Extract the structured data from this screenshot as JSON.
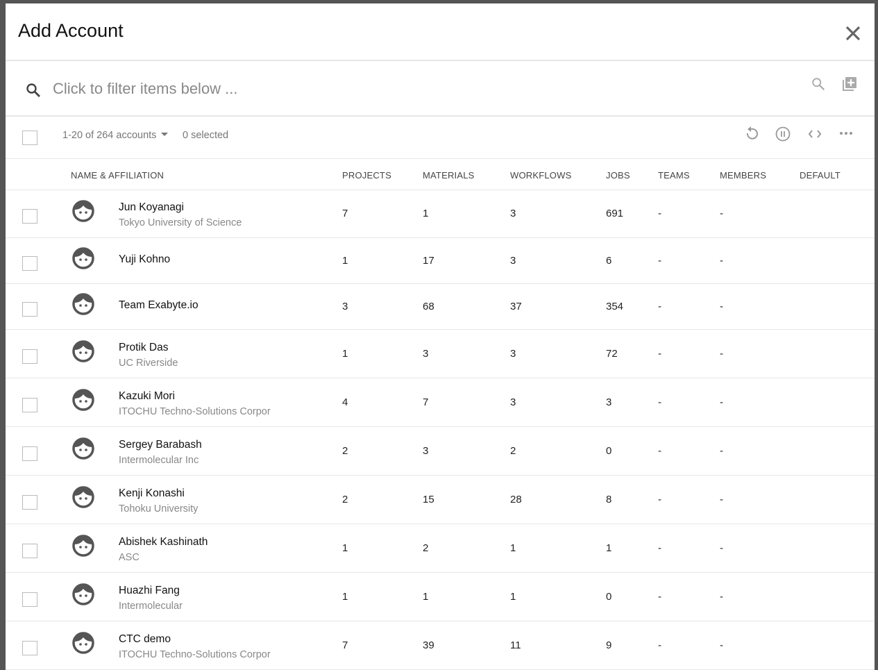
{
  "dialog": {
    "title": "Add Account"
  },
  "filter": {
    "placeholder": "Click to filter items below ..."
  },
  "toolbar": {
    "range": "1-20 of 264 accounts",
    "selected": "0 selected"
  },
  "columns": [
    "NAME & AFFILIATION",
    "PROJECTS",
    "MATERIALS",
    "WORKFLOWS",
    "JOBS",
    "TEAMS",
    "MEMBERS",
    "DEFAULT"
  ],
  "rows": [
    {
      "name": "Jun Koyanagi",
      "affiliation": "Tokyo University of Science",
      "projects": "7",
      "materials": "1",
      "workflows": "3",
      "jobs": "691",
      "teams": "-",
      "members": "-",
      "default": ""
    },
    {
      "name": "Yuji Kohno",
      "affiliation": "",
      "projects": "1",
      "materials": "17",
      "workflows": "3",
      "jobs": "6",
      "teams": "-",
      "members": "-",
      "default": ""
    },
    {
      "name": "Team Exabyte.io",
      "affiliation": "",
      "projects": "3",
      "materials": "68",
      "workflows": "37",
      "jobs": "354",
      "teams": "-",
      "members": "-",
      "default": ""
    },
    {
      "name": "Protik Das",
      "affiliation": "UC Riverside",
      "projects": "1",
      "materials": "3",
      "workflows": "3",
      "jobs": "72",
      "teams": "-",
      "members": "-",
      "default": ""
    },
    {
      "name": "Kazuki Mori",
      "affiliation": "ITOCHU Techno-Solutions Corpor",
      "projects": "4",
      "materials": "7",
      "workflows": "3",
      "jobs": "3",
      "teams": "-",
      "members": "-",
      "default": ""
    },
    {
      "name": "Sergey Barabash",
      "affiliation": "Intermolecular Inc",
      "projects": "2",
      "materials": "3",
      "workflows": "2",
      "jobs": "0",
      "teams": "-",
      "members": "-",
      "default": ""
    },
    {
      "name": "Kenji Konashi",
      "affiliation": "Tohoku University",
      "projects": "2",
      "materials": "15",
      "workflows": "28",
      "jobs": "8",
      "teams": "-",
      "members": "-",
      "default": ""
    },
    {
      "name": "Abishek Kashinath",
      "affiliation": "ASC",
      "projects": "1",
      "materials": "2",
      "workflows": "1",
      "jobs": "1",
      "teams": "-",
      "members": "-",
      "default": ""
    },
    {
      "name": "Huazhi Fang",
      "affiliation": "Intermolecular",
      "projects": "1",
      "materials": "1",
      "workflows": "1",
      "jobs": "0",
      "teams": "-",
      "members": "-",
      "default": ""
    },
    {
      "name": "CTC demo",
      "affiliation": "ITOCHU Techno-Solutions Corpor",
      "projects": "7",
      "materials": "39",
      "workflows": "11",
      "jobs": "9",
      "teams": "-",
      "members": "-",
      "default": ""
    }
  ]
}
